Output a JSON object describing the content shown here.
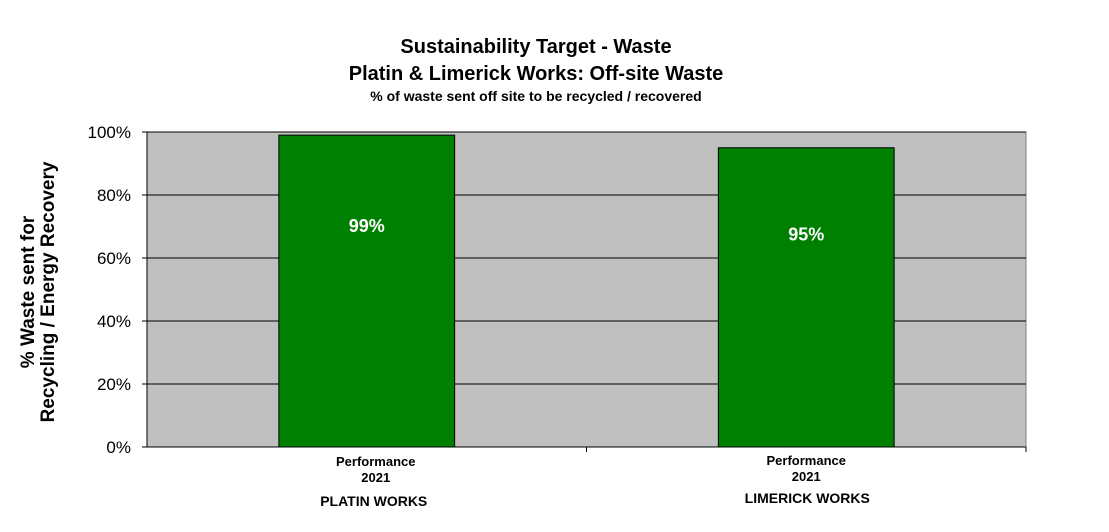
{
  "chart_data": {
    "type": "bar",
    "title": "Sustainability Target - Waste",
    "subtitle": "Platin & Limerick Works: Off-site Waste",
    "caption": "% of waste sent off site to be recycled / recovered",
    "ylabel_lines": [
      "% Waste sent for",
      "Recycling / Energy Recovery"
    ],
    "ylim": [
      0,
      100
    ],
    "yticks": [
      0,
      20,
      40,
      60,
      80,
      100
    ],
    "ytick_labels": [
      "0%",
      "20%",
      "40%",
      "60%",
      "80%",
      "100%"
    ],
    "grid": true,
    "legend": "none",
    "categories": [
      {
        "line1": "Performance",
        "line2": "2021",
        "group": "PLATIN WORKS"
      },
      {
        "line1": "Performance",
        "line2": "2021",
        "group": "LIMERICK WORKS"
      }
    ],
    "values": [
      99,
      95
    ],
    "data_labels": [
      "99%",
      "95%"
    ],
    "colors": {
      "bar": "#008000",
      "plot_background": "#c0c0c0",
      "gridline": "#000000",
      "data_label": "#ffffff"
    }
  }
}
